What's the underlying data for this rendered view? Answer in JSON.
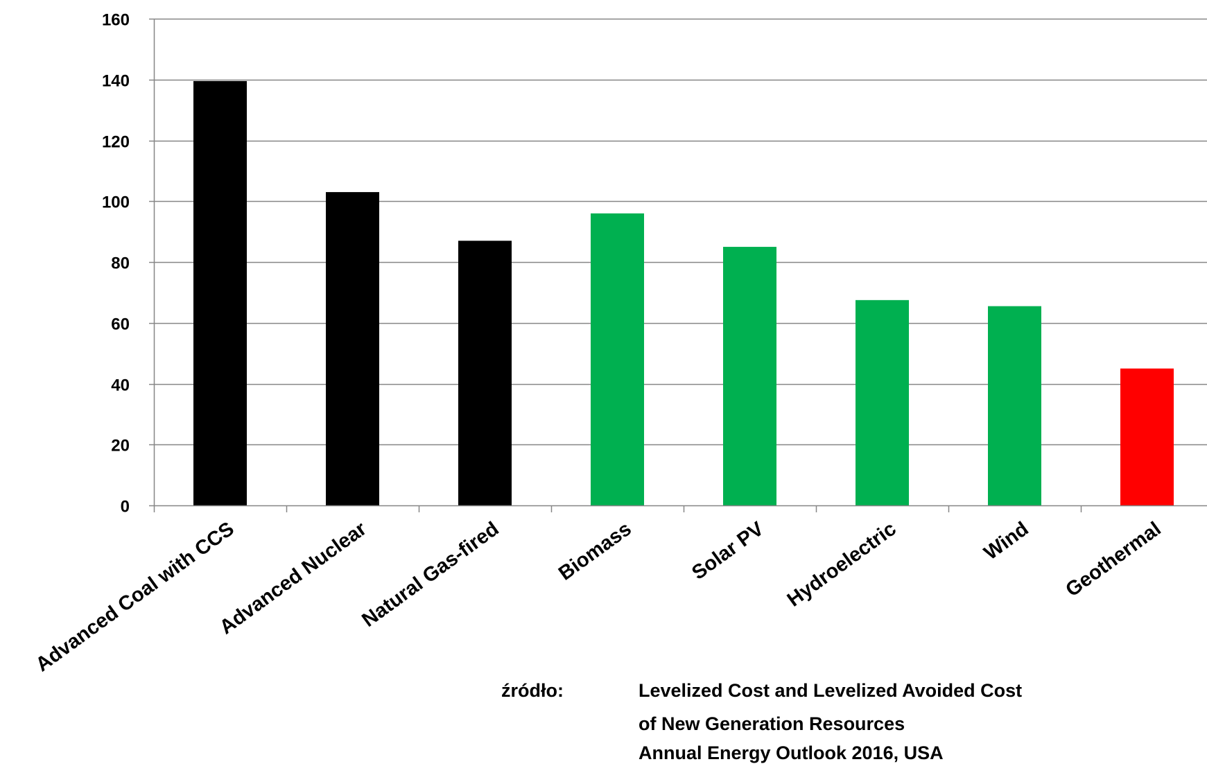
{
  "chart_data": {
    "type": "bar",
    "categories": [
      "Advanced Coal with CCS",
      "Advanced Nuclear",
      "Natural Gas-fired",
      "Biomass",
      "Solar PV",
      "Hydroelectric",
      "Wind",
      "Geothermal"
    ],
    "values": [
      139.5,
      103,
      87,
      96,
      85,
      67.5,
      65.5,
      45
    ],
    "bar_colors": [
      "#000000",
      "#000000",
      "#000000",
      "#00b050",
      "#00b050",
      "#00b050",
      "#00b050",
      "#ff0000"
    ],
    "yticks": [
      "0",
      "20",
      "40",
      "60",
      "80",
      "100",
      "120",
      "140",
      "160"
    ],
    "ylim": [
      0,
      160
    ],
    "grid": true,
    "gridline_color": "#868686"
  },
  "source": {
    "label": "źródło:",
    "lines": [
      "Levelized Cost and Levelized Avoided Cost",
      "of New Generation Resources",
      "Annual Energy Outlook 2016, USA"
    ]
  }
}
